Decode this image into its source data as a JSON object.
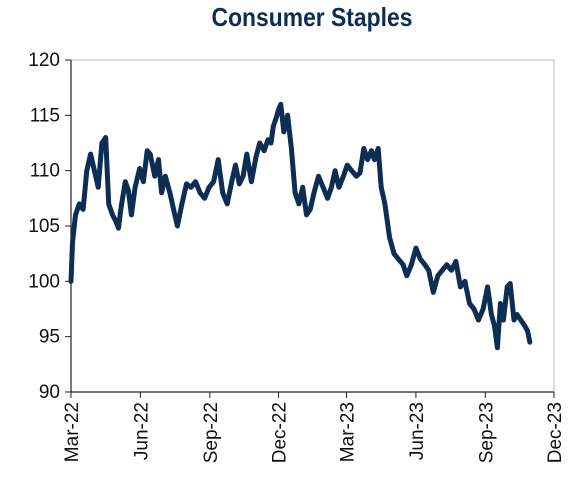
{
  "chart_data": {
    "type": "line",
    "title": "Consumer Staples",
    "xlabel": "",
    "ylabel": "",
    "ylim": [
      90,
      120
    ],
    "yticks": [
      90,
      95,
      100,
      105,
      110,
      115,
      120
    ],
    "xlim": [
      "2022-03-01",
      "2023-12-01"
    ],
    "xtick_labels": [
      "Mar-22",
      "Jun-22",
      "Sep-22",
      "Dec-22",
      "Mar-23",
      "Jun-23",
      "Sep-23",
      "Dec-23"
    ],
    "xtick_dates": [
      "2022-03-01",
      "2022-06-01",
      "2022-09-01",
      "2022-12-01",
      "2023-03-01",
      "2023-06-01",
      "2023-09-01",
      "2023-12-01"
    ],
    "grid": false,
    "legend": "none",
    "colors": {
      "line": "#0d2d52",
      "axis": "#222222"
    },
    "series": [
      {
        "x": [
          "2022-03-01",
          "2022-03-03",
          "2022-03-07",
          "2022-03-12",
          "2022-03-17",
          "2022-03-22",
          "2022-03-27",
          "2022-04-01",
          "2022-04-06",
          "2022-04-11",
          "2022-04-16",
          "2022-04-20",
          "2022-04-25",
          "2022-04-29",
          "2022-05-03",
          "2022-05-06",
          "2022-05-09",
          "2022-05-12",
          "2022-05-16",
          "2022-05-20",
          "2022-05-25",
          "2022-05-31",
          "2022-06-05",
          "2022-06-10",
          "2022-06-14",
          "2022-06-20",
          "2022-06-25",
          "2022-06-29",
          "2022-07-04",
          "2022-07-10",
          "2022-07-15",
          "2022-07-20",
          "2022-07-26",
          "2022-08-01",
          "2022-08-07",
          "2022-08-13",
          "2022-08-19",
          "2022-08-25",
          "2022-08-31",
          "2022-09-06",
          "2022-09-12",
          "2022-09-18",
          "2022-09-24",
          "2022-09-30",
          "2022-10-05",
          "2022-10-10",
          "2022-10-15",
          "2022-10-20",
          "2022-10-26",
          "2022-11-01",
          "2022-11-06",
          "2022-11-12",
          "2022-11-17",
          "2022-11-21",
          "2022-11-24",
          "2022-11-28",
          "2022-12-01",
          "2022-12-04",
          "2022-12-08",
          "2022-12-13",
          "2022-12-18",
          "2022-12-23",
          "2022-12-28",
          "2023-01-02",
          "2023-01-07",
          "2023-01-12",
          "2023-01-17",
          "2023-01-23",
          "2023-01-29",
          "2023-02-04",
          "2023-02-09",
          "2023-02-14",
          "2023-02-19",
          "2023-02-25",
          "2023-03-02",
          "2023-03-08",
          "2023-03-14",
          "2023-03-19",
          "2023-03-24",
          "2023-03-29",
          "2023-04-03",
          "2023-04-07",
          "2023-04-12",
          "2023-04-16",
          "2023-04-21",
          "2023-04-27",
          "2023-05-03",
          "2023-05-09",
          "2023-05-15",
          "2023-05-20",
          "2023-05-26",
          "2023-06-01",
          "2023-06-07",
          "2023-06-13",
          "2023-06-18",
          "2023-06-24",
          "2023-06-30",
          "2023-07-06",
          "2023-07-12",
          "2023-07-18",
          "2023-07-24",
          "2023-07-30",
          "2023-08-05",
          "2023-08-11",
          "2023-08-17",
          "2023-08-23",
          "2023-08-29",
          "2023-09-04",
          "2023-09-09",
          "2023-09-13",
          "2023-09-17",
          "2023-09-21",
          "2023-09-25",
          "2023-09-30",
          "2023-10-04",
          "2023-10-09",
          "2023-10-13",
          "2023-10-18",
          "2023-10-23",
          "2023-10-27",
          "2023-10-30"
        ],
        "values": [
          100.0,
          103.5,
          106.0,
          107.0,
          106.5,
          110.0,
          111.5,
          110.0,
          108.5,
          112.5,
          113.0,
          107.0,
          106.0,
          105.5,
          104.8,
          106.5,
          107.8,
          109.0,
          108.2,
          106.0,
          108.5,
          110.2,
          109.0,
          111.8,
          111.5,
          109.5,
          111.0,
          108.0,
          109.5,
          108.0,
          106.5,
          105.0,
          107.0,
          108.8,
          108.5,
          109.0,
          108.0,
          107.5,
          108.5,
          109.0,
          111.0,
          108.0,
          107.0,
          109.0,
          110.5,
          108.8,
          109.5,
          111.5,
          109.0,
          111.2,
          112.5,
          111.8,
          112.8,
          112.5,
          114.0,
          114.8,
          115.5,
          116.0,
          113.5,
          115.0,
          112.0,
          108.0,
          107.0,
          108.5,
          106.0,
          106.5,
          108.0,
          109.5,
          108.5,
          107.5,
          108.5,
          110.0,
          108.5,
          109.5,
          110.5,
          110.0,
          109.5,
          109.8,
          112.0,
          111.0,
          111.8,
          111.0,
          112.0,
          108.5,
          107.0,
          104.0,
          102.5,
          102.0,
          101.5,
          100.5,
          101.5,
          103.0,
          102.0,
          101.5,
          101.0,
          99.0,
          100.5,
          101.0,
          101.5,
          101.0,
          101.8,
          99.5,
          100.0,
          98.0,
          97.5,
          96.5,
          97.5,
          99.5,
          97.0,
          96.0,
          94.0,
          98.0,
          96.5,
          99.5,
          99.8,
          96.5,
          97.0,
          96.5,
          96.0,
          95.5,
          94.5
        ]
      }
    ]
  }
}
